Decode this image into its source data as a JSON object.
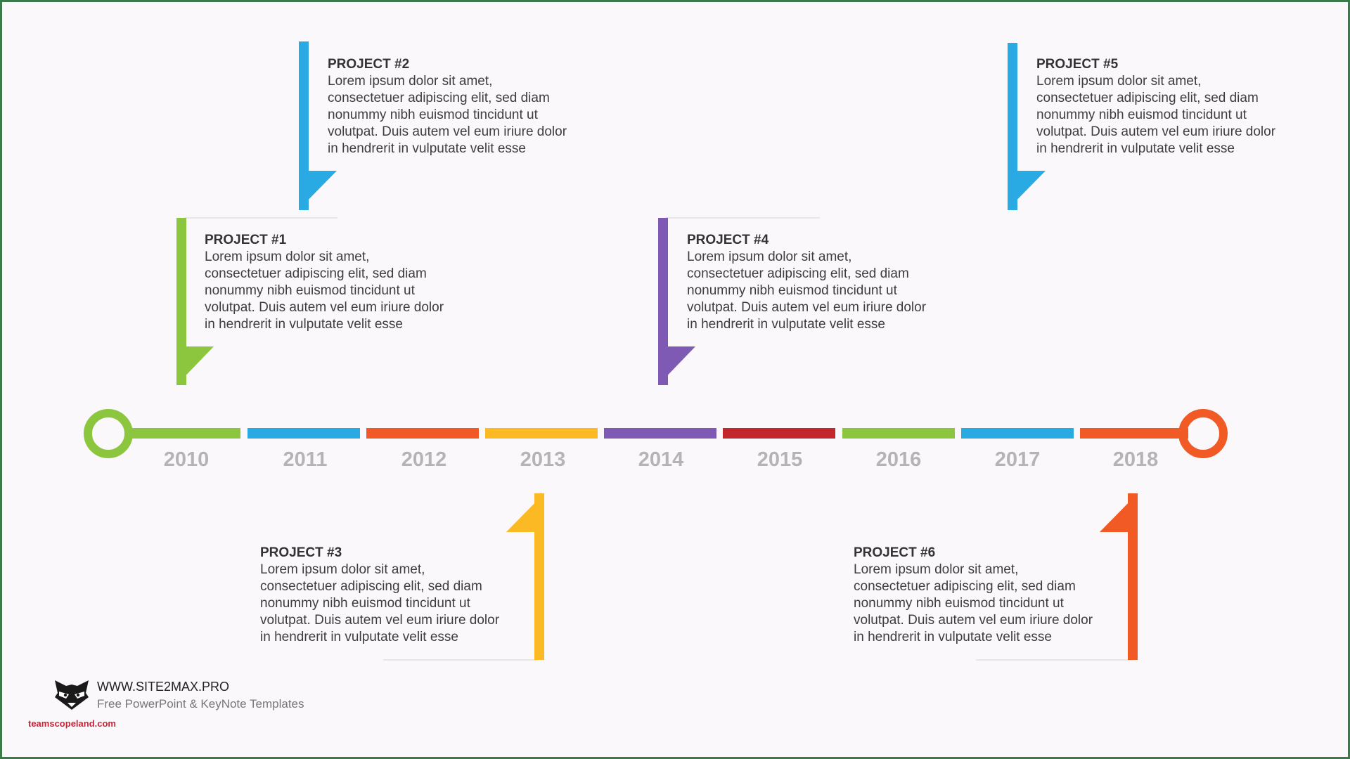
{
  "timeline": {
    "years": [
      {
        "label": "2010",
        "color": "#8cc63f"
      },
      {
        "label": "2011",
        "color": "#29aae3"
      },
      {
        "label": "2012",
        "color": "#f15a24"
      },
      {
        "label": "2013",
        "color": "#fbb924"
      },
      {
        "label": "2014",
        "color": "#7e5ab5"
      },
      {
        "label": "2015",
        "color": "#c1272d"
      },
      {
        "label": "2016",
        "color": "#8cc63f"
      },
      {
        "label": "2017",
        "color": "#29aae3"
      },
      {
        "label": "2018",
        "color": "#f15a24"
      }
    ],
    "start_color": "#8cc63f",
    "end_color": "#f15a24"
  },
  "projects": [
    {
      "title": "PROJECT #1",
      "color": "#8cc63f",
      "lines": [
        "Lorem ipsum dolor sit amet,",
        "consectetuer adipiscing elit, sed diam",
        "nonummy nibh euismod tincidunt ut",
        "volutpat. Duis autem vel eum iriure dolor",
        "in hendrerit in vulputate velit esse"
      ]
    },
    {
      "title": "PROJECT #2",
      "color": "#29aae3",
      "lines": [
        "Lorem ipsum dolor sit amet,",
        "consectetuer adipiscing elit, sed diam",
        "nonummy nibh euismod tincidunt ut",
        "volutpat. Duis autem vel eum iriure dolor",
        "in hendrerit in vulputate velit esse"
      ]
    },
    {
      "title": "PROJECT #3",
      "color": "#fbb924",
      "lines": [
        "Lorem ipsum dolor sit amet,",
        "consectetuer adipiscing elit, sed diam",
        "nonummy nibh euismod tincidunt ut",
        "volutpat. Duis autem vel eum iriure dolor",
        "in hendrerit in vulputate velit esse"
      ]
    },
    {
      "title": "PROJECT #4",
      "color": "#7e5ab5",
      "lines": [
        "Lorem ipsum dolor sit amet,",
        "consectetuer adipiscing elit, sed diam",
        "nonummy nibh euismod tincidunt ut",
        "volutpat. Duis autem vel eum iriure dolor",
        "in hendrerit in vulputate velit esse"
      ]
    },
    {
      "title": "PROJECT #5",
      "color": "#29aae3",
      "lines": [
        "Lorem ipsum dolor sit amet,",
        "consectetuer adipiscing elit, sed diam",
        "nonummy nibh euismod tincidunt ut",
        "volutpat. Duis autem vel eum iriure dolor",
        "in hendrerit in vulputate velit esse"
      ]
    },
    {
      "title": "PROJECT #6",
      "color": "#f15a24",
      "lines": [
        "Lorem ipsum dolor sit amet,",
        "consectetuer adipiscing elit, sed diam",
        "nonummy nibh euismod tincidunt ut",
        "volutpat. Duis autem vel eum iriure dolor",
        "in hendrerit in vulputate velit esse"
      ]
    }
  ],
  "branding": {
    "logo_icon": "raccoon-icon",
    "url": "WWW.SITE2MAX.PRO",
    "subtitle": "Free PowerPoint & KeyNote Templates",
    "watermark": "teamscopeland.com"
  }
}
